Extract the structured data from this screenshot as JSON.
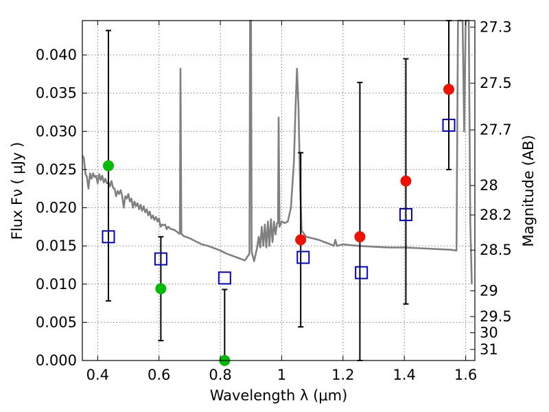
{
  "chart_data": {
    "type": "scatter",
    "xlabel": "Wavelength  λ (μm)",
    "ylabel": "Flux  Fν  ( μJy )",
    "ylabel_right": "Magnitude (AB)",
    "xlim": [
      0.35,
      1.63
    ],
    "ylim": [
      0.0,
      0.0445
    ],
    "grid": true,
    "x_ticks": [
      {
        "value": 0.4,
        "label": "0.4"
      },
      {
        "value": 0.6,
        "label": "0.6"
      },
      {
        "value": 0.8,
        "label": "0.8"
      },
      {
        "value": 1.0,
        "label": "1"
      },
      {
        "value": 1.2,
        "label": "1.2"
      },
      {
        "value": 1.4,
        "label": "1.4"
      },
      {
        "value": 1.6,
        "label": "1.6"
      }
    ],
    "y_ticks": [
      {
        "value": 0.0,
        "label": "0.000"
      },
      {
        "value": 0.005,
        "label": "0.005"
      },
      {
        "value": 0.01,
        "label": "0.010"
      },
      {
        "value": 0.015,
        "label": "0.015"
      },
      {
        "value": 0.02,
        "label": "0.020"
      },
      {
        "value": 0.025,
        "label": "0.025"
      },
      {
        "value": 0.03,
        "label": "0.030"
      },
      {
        "value": 0.035,
        "label": "0.035"
      },
      {
        "value": 0.04,
        "label": "0.040"
      }
    ],
    "right_ticks": [
      {
        "mag": 27.3,
        "label": "27.3"
      },
      {
        "mag": 27.5,
        "label": "27.5"
      },
      {
        "mag": 27.7,
        "label": "27.7"
      },
      {
        "mag": 28.0,
        "label": "28"
      },
      {
        "mag": 28.2,
        "label": "28.2"
      },
      {
        "mag": 28.5,
        "label": "28.5"
      },
      {
        "mag": 29.0,
        "label": "29"
      },
      {
        "mag": 29.5,
        "label": "29.5"
      },
      {
        "mag": 30.0,
        "label": "30"
      },
      {
        "mag": 31.0,
        "label": "31"
      }
    ],
    "sed_model": {
      "color": "#808080",
      "points": [
        [
          0.35,
          0.0268
        ],
        [
          0.355,
          0.0265
        ],
        [
          0.36,
          0.0245
        ],
        [
          0.365,
          0.024
        ],
        [
          0.37,
          0.0225
        ],
        [
          0.375,
          0.0245
        ],
        [
          0.38,
          0.0238
        ],
        [
          0.385,
          0.0245
        ],
        [
          0.39,
          0.024
        ],
        [
          0.395,
          0.0242
        ],
        [
          0.4,
          0.0232
        ],
        [
          0.405,
          0.0244
        ],
        [
          0.41,
          0.0236
        ],
        [
          0.415,
          0.0242
        ],
        [
          0.42,
          0.0233
        ],
        [
          0.425,
          0.0238
        ],
        [
          0.43,
          0.0232
        ],
        [
          0.435,
          0.0233
        ],
        [
          0.44,
          0.0228
        ],
        [
          0.445,
          0.0235
        ],
        [
          0.45,
          0.0226
        ],
        [
          0.455,
          0.0225
        ],
        [
          0.46,
          0.0215
        ],
        [
          0.465,
          0.0222
        ],
        [
          0.47,
          0.0218
        ],
        [
          0.475,
          0.0223
        ],
        [
          0.48,
          0.0215
        ],
        [
          0.485,
          0.02
        ],
        [
          0.49,
          0.0215
        ],
        [
          0.495,
          0.0212
        ],
        [
          0.5,
          0.0218
        ],
        [
          0.505,
          0.0208
        ],
        [
          0.51,
          0.0212
        ],
        [
          0.515,
          0.02
        ],
        [
          0.52,
          0.0208
        ],
        [
          0.525,
          0.0202
        ],
        [
          0.53,
          0.0206
        ],
        [
          0.535,
          0.0198
        ],
        [
          0.54,
          0.0204
        ],
        [
          0.545,
          0.0196
        ],
        [
          0.55,
          0.0202
        ],
        [
          0.555,
          0.0194
        ],
        [
          0.56,
          0.0198
        ],
        [
          0.565,
          0.019
        ],
        [
          0.57,
          0.0195
        ],
        [
          0.575,
          0.0186
        ],
        [
          0.58,
          0.019
        ],
        [
          0.585,
          0.0184
        ],
        [
          0.59,
          0.0188
        ],
        [
          0.595,
          0.0182
        ],
        [
          0.6,
          0.0186
        ],
        [
          0.605,
          0.0175
        ],
        [
          0.61,
          0.0178
        ],
        [
          0.615,
          0.0177
        ],
        [
          0.62,
          0.0178
        ],
        [
          0.625,
          0.0172
        ],
        [
          0.63,
          0.0175
        ],
        [
          0.64,
          0.0172
        ],
        [
          0.65,
          0.0171
        ],
        [
          0.66,
          0.0168
        ],
        [
          0.665,
          0.0166
        ],
        [
          0.668,
          0.0166
        ],
        [
          0.67,
          0.0382
        ],
        [
          0.673,
          0.0166
        ],
        [
          0.68,
          0.0163
        ],
        [
          0.7,
          0.016
        ],
        [
          0.72,
          0.0156
        ],
        [
          0.74,
          0.0152
        ],
        [
          0.76,
          0.015
        ],
        [
          0.78,
          0.0147
        ],
        [
          0.8,
          0.0144
        ],
        [
          0.82,
          0.014
        ],
        [
          0.84,
          0.0137
        ],
        [
          0.86,
          0.0134
        ],
        [
          0.88,
          0.0131
        ],
        [
          0.89,
          0.0137
        ],
        [
          0.895,
          0.014
        ],
        [
          0.897,
          0.0445
        ],
        [
          0.9,
          0.0445
        ],
        [
          0.902,
          0.0143
        ],
        [
          0.905,
          0.0138
        ],
        [
          0.91,
          0.013
        ],
        [
          0.92,
          0.0148
        ],
        [
          0.925,
          0.0162
        ],
        [
          0.93,
          0.0148
        ],
        [
          0.935,
          0.0175
        ],
        [
          0.94,
          0.015
        ],
        [
          0.945,
          0.0178
        ],
        [
          0.95,
          0.0148
        ],
        [
          0.955,
          0.0182
        ],
        [
          0.96,
          0.015
        ],
        [
          0.965,
          0.0185
        ],
        [
          0.97,
          0.0155
        ],
        [
          0.975,
          0.0182
        ],
        [
          0.98,
          0.0165
        ],
        [
          0.985,
          0.018
        ],
        [
          0.988,
          0.018
        ],
        [
          0.99,
          0.0318
        ],
        [
          0.993,
          0.0175
        ],
        [
          1.0,
          0.0182
        ],
        [
          1.01,
          0.018
        ],
        [
          1.02,
          0.0182
        ],
        [
          1.03,
          0.02
        ],
        [
          1.04,
          0.026
        ],
        [
          1.045,
          0.033
        ],
        [
          1.05,
          0.0382
        ],
        [
          1.055,
          0.033
        ],
        [
          1.06,
          0.023
        ],
        [
          1.065,
          0.017
        ],
        [
          1.08,
          0.0162
        ],
        [
          1.1,
          0.016
        ],
        [
          1.12,
          0.0158
        ],
        [
          1.14,
          0.0155
        ],
        [
          1.16,
          0.0152
        ],
        [
          1.17,
          0.015
        ],
        [
          1.175,
          0.0158
        ],
        [
          1.18,
          0.015
        ],
        [
          1.2,
          0.0152
        ],
        [
          1.25,
          0.015
        ],
        [
          1.3,
          0.0149
        ],
        [
          1.35,
          0.0148
        ],
        [
          1.4,
          0.0148
        ],
        [
          1.45,
          0.0147
        ],
        [
          1.5,
          0.0146
        ],
        [
          1.55,
          0.0145
        ],
        [
          1.57,
          0.0144
        ],
        [
          1.575,
          0.0445
        ],
        [
          1.59,
          0.0445
        ],
        [
          1.595,
          0.03
        ],
        [
          1.6,
          0.0445
        ],
        [
          1.61,
          0.0445
        ],
        [
          1.615,
          0.018
        ],
        [
          1.62,
          0.01
        ]
      ]
    },
    "model_photometry": {
      "marker": "open-square",
      "color": "#0000cc",
      "points": [
        {
          "x": 0.435,
          "y": 0.0162
        },
        {
          "x": 0.606,
          "y": 0.0133
        },
        {
          "x": 0.814,
          "y": 0.0108
        },
        {
          "x": 1.07,
          "y": 0.0135
        },
        {
          "x": 1.26,
          "y": 0.0115
        },
        {
          "x": 1.405,
          "y": 0.0191
        },
        {
          "x": 1.545,
          "y": 0.0308
        }
      ]
    },
    "observed_hst": {
      "marker": "filled-circle",
      "color": "#00bb00",
      "points": [
        {
          "x": 0.435,
          "y": 0.0255,
          "err": [
            0.0078,
            0.0432
          ]
        },
        {
          "x": 0.606,
          "y": 0.0094,
          "err": [
            0.0026,
            0.0162
          ]
        },
        {
          "x": 0.814,
          "y": 0.0,
          "err": [
            0.0,
            0.0093
          ]
        }
      ]
    },
    "observed_ir": {
      "marker": "filled-circle",
      "color": "#ee1100",
      "points": [
        {
          "x": 1.062,
          "y": 0.0158,
          "err": [
            0.0044,
            0.0272
          ]
        },
        {
          "x": 1.255,
          "y": 0.0162,
          "err": [
            0.0,
            0.0364
          ]
        },
        {
          "x": 1.405,
          "y": 0.0235,
          "err": [
            0.0074,
            0.0395
          ]
        },
        {
          "x": 1.545,
          "y": 0.0355,
          "err": [
            0.025,
            0.0445
          ]
        }
      ]
    }
  }
}
